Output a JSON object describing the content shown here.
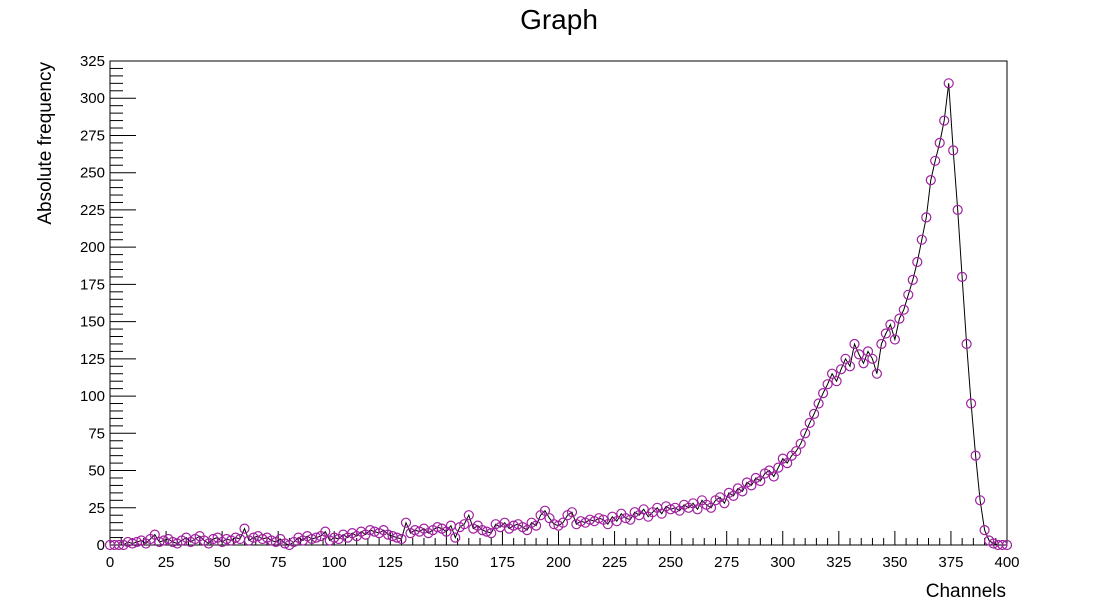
{
  "chart_data": {
    "type": "scatter",
    "title": "Graph",
    "xlabel": "Channels",
    "ylabel": "Absolute frequency",
    "xlim": [
      0,
      400
    ],
    "ylim": [
      0,
      325
    ],
    "x_ticks": [
      "0",
      "25",
      "50",
      "75",
      "100",
      "125",
      "150",
      "175",
      "200",
      "225",
      "250",
      "275",
      "300",
      "325",
      "350",
      "375",
      "400"
    ],
    "y_ticks": [
      "0",
      "25",
      "50",
      "75",
      "100",
      "125",
      "150",
      "175",
      "200",
      "225",
      "250",
      "275",
      "300",
      "325"
    ],
    "grid": false,
    "legend": "none",
    "marker": "open-circle",
    "connected_line": true,
    "colors": {
      "marker": "#a020a0",
      "line": "#000000",
      "axis": "#000000"
    },
    "series": [
      {
        "x": [
          0,
          2,
          4,
          6,
          8,
          10,
          12,
          14,
          16,
          18,
          20,
          22,
          24,
          26,
          28,
          30,
          32,
          34,
          36,
          38,
          40,
          42,
          44,
          46,
          48,
          50,
          52,
          54,
          56,
          58,
          60,
          62,
          64,
          66,
          68,
          70,
          72,
          74,
          76,
          78,
          80,
          82,
          84,
          86,
          88,
          90,
          92,
          94,
          96,
          98,
          100,
          102,
          104,
          106,
          108,
          110,
          112,
          114,
          116,
          118,
          120,
          122,
          124,
          126,
          128,
          130,
          132,
          134,
          136,
          138,
          140,
          142,
          144,
          146,
          148,
          150,
          152,
          154,
          156,
          158,
          160,
          162,
          164,
          166,
          168,
          170,
          172,
          174,
          176,
          178,
          180,
          182,
          184,
          186,
          188,
          190,
          192,
          194,
          196,
          198,
          200,
          202,
          204,
          206,
          208,
          210,
          212,
          214,
          216,
          218,
          220,
          222,
          224,
          226,
          228,
          230,
          232,
          234,
          236,
          238,
          240,
          242,
          244,
          246,
          248,
          250,
          252,
          254,
          256,
          258,
          260,
          262,
          264,
          266,
          268,
          270,
          272,
          274,
          276,
          278,
          280,
          282,
          284,
          286,
          288,
          290,
          292,
          294,
          296,
          298,
          300,
          302,
          304,
          306,
          308,
          310,
          312,
          314,
          316,
          318,
          320,
          322,
          324,
          326,
          328,
          330,
          332,
          334,
          336,
          338,
          340,
          342,
          344,
          346,
          348,
          350,
          352,
          354,
          356,
          358,
          360,
          362,
          364,
          366,
          368,
          370,
          372,
          374,
          376,
          378,
          380,
          382,
          384,
          386,
          388,
          390,
          392,
          394,
          396,
          398,
          400
        ],
        "y": [
          0,
          0,
          0,
          0,
          2,
          1,
          2,
          3,
          1,
          4,
          7,
          2,
          3,
          4,
          2,
          1,
          3,
          5,
          2,
          4,
          6,
          3,
          1,
          4,
          5,
          2,
          4,
          3,
          5,
          4,
          11,
          3,
          5,
          6,
          4,
          5,
          3,
          2,
          4,
          1,
          0,
          2,
          5,
          3,
          6,
          4,
          5,
          6,
          9,
          3,
          5,
          4,
          7,
          5,
          8,
          6,
          9,
          7,
          10,
          9,
          8,
          10,
          7,
          6,
          5,
          4,
          15,
          8,
          10,
          9,
          11,
          8,
          10,
          12,
          11,
          9,
          13,
          5,
          12,
          14,
          20,
          11,
          13,
          10,
          9,
          8,
          14,
          12,
          15,
          11,
          13,
          14,
          12,
          10,
          15,
          13,
          20,
          23,
          18,
          14,
          13,
          15,
          20,
          22,
          14,
          16,
          15,
          17,
          16,
          18,
          17,
          14,
          19,
          16,
          21,
          18,
          17,
          22,
          20,
          24,
          19,
          22,
          25,
          21,
          26,
          24,
          25,
          23,
          27,
          25,
          28,
          24,
          30,
          27,
          25,
          30,
          32,
          28,
          35,
          33,
          38,
          36,
          42,
          40,
          45,
          43,
          48,
          50,
          46,
          52,
          58,
          55,
          60,
          63,
          68,
          75,
          82,
          88,
          95,
          102,
          108,
          115,
          110,
          118,
          125,
          120,
          135,
          128,
          122,
          130,
          125,
          115,
          135,
          142,
          148,
          138,
          152,
          158,
          168,
          178,
          190,
          205,
          220,
          245,
          258,
          270,
          285,
          310,
          265,
          225,
          180,
          135,
          95,
          60,
          30,
          10,
          3,
          1,
          0,
          0,
          0
        ]
      }
    ]
  }
}
